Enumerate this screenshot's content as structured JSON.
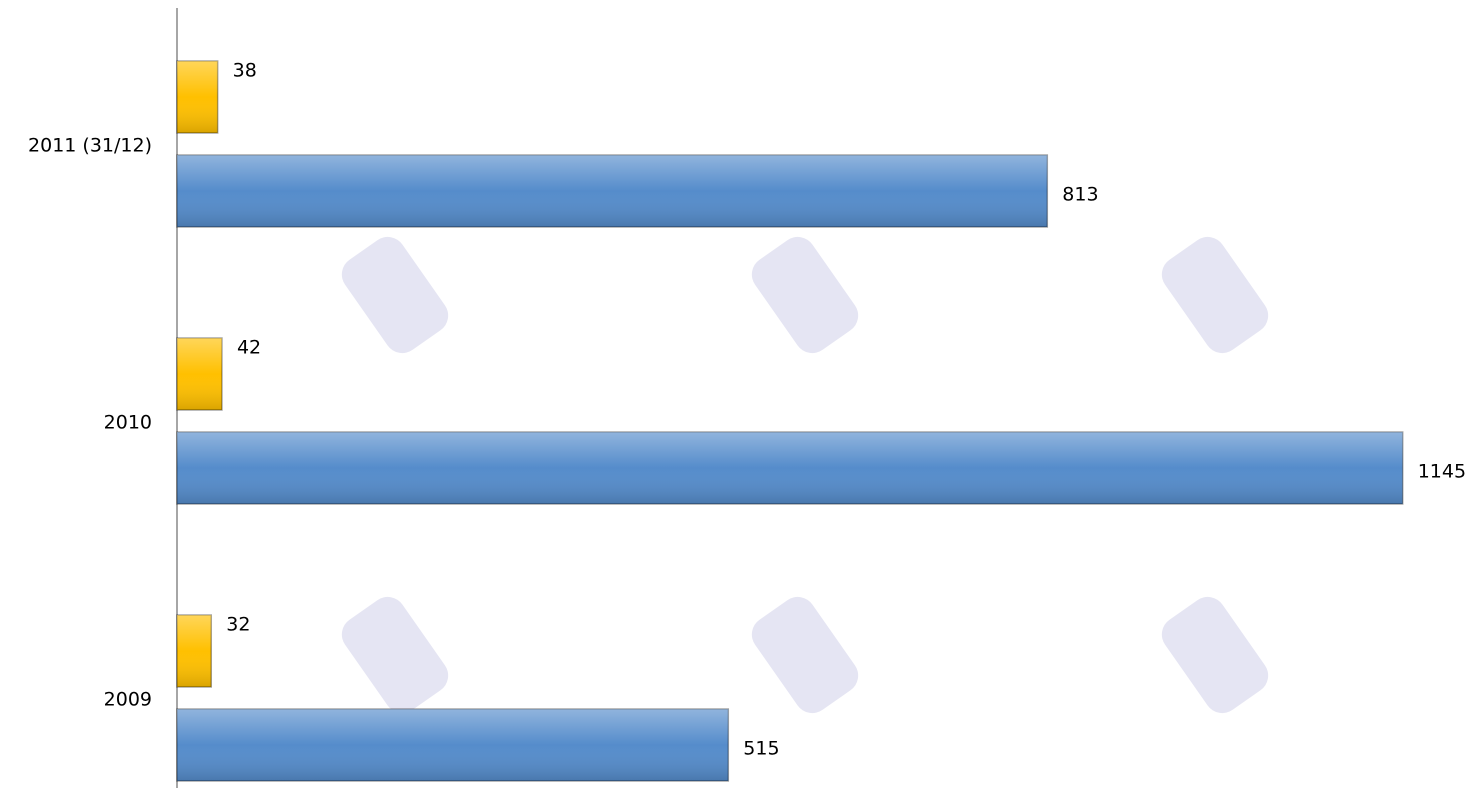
{
  "chart_data": {
    "type": "bar",
    "orientation": "horizontal",
    "categories": [
      "2009",
      "2010",
      "2011 (31/12)"
    ],
    "series": [
      {
        "color": "#ffc000",
        "values": [
          32,
          42,
          38
        ]
      },
      {
        "color": "#558ccb",
        "values": [
          515,
          1145,
          813
        ]
      }
    ],
    "xlim": [
      0,
      1220
    ],
    "grid": false
  }
}
